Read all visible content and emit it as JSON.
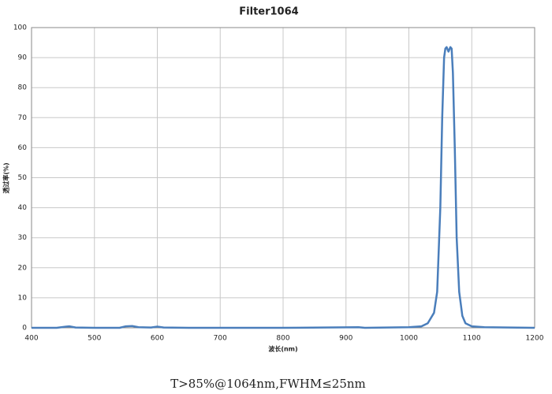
{
  "chart_data": {
    "type": "line",
    "title": "Filter1064",
    "x_label": "波长(nm)",
    "y_label": "透过率(%)",
    "caption": "T>85%@1064nm,FWHM≤25nm",
    "x": [
      400,
      440,
      455,
      460,
      470,
      500,
      540,
      550,
      560,
      570,
      590,
      600,
      610,
      650,
      800,
      920,
      930,
      1000,
      1020,
      1030,
      1040,
      1045,
      1050,
      1053,
      1056,
      1058,
      1060,
      1063,
      1066,
      1068,
      1070,
      1073,
      1076,
      1080,
      1085,
      1090,
      1100,
      1120,
      1200
    ],
    "series": [
      {
        "name": "Filter1064",
        "color": "#4a7ebb",
        "values": [
          0,
          0,
          0.4,
          0.5,
          0.1,
          0,
          0,
          0.5,
          0.6,
          0.2,
          0.1,
          0.4,
          0.1,
          0,
          0,
          0.2,
          0,
          0.2,
          0.5,
          1.5,
          5,
          12,
          40,
          70,
          90,
          93,
          93.5,
          92,
          93.5,
          93,
          85,
          60,
          30,
          12,
          4,
          1.5,
          0.5,
          0.2,
          0
        ]
      }
    ],
    "xlim": [
      400,
      1200
    ],
    "ylim": [
      0,
      100
    ],
    "xticks": [
      400,
      500,
      600,
      700,
      800,
      900,
      1000,
      1100,
      1200
    ],
    "yticks": [
      0,
      10,
      20,
      30,
      40,
      50,
      60,
      70,
      80,
      90,
      100
    ],
    "grid": true
  }
}
